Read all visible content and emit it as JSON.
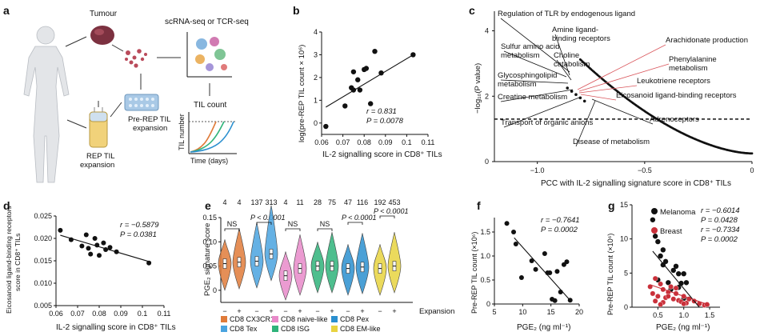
{
  "panel_letters": {
    "a": "a",
    "b": "b",
    "c": "c",
    "d": "d",
    "e": "e",
    "f": "f",
    "g": "g"
  },
  "schematic": {
    "tumour": "Tumour",
    "seq": "scRNA-seq or TCR-seq",
    "pre_rep_1": "Pre-REP TIL",
    "pre_rep_2": "expansion",
    "rep_1": "REP TIL",
    "rep_2": "expansion",
    "til_count": "TIL count",
    "til_number": "TIL number",
    "time_days": "Time (days)"
  },
  "colors": {
    "black": "#111111",
    "red_lines": "#d9555b",
    "breast": "#c9303a"
  },
  "chart_data": [
    {
      "id": "b",
      "type": "scatter",
      "xlabel": "IL-2 signalling score in CD8⁺ TILs",
      "ylabel": "log(pre-REP TIL count × 10⁶)",
      "xlim": [
        0.06,
        0.11
      ],
      "ylim": [
        -0.5,
        4
      ],
      "xticks": [
        "0.06",
        "0.07",
        "0.08",
        "0.09",
        "0.1",
        "0.11"
      ],
      "yticks": [
        "0",
        "1",
        "2",
        "3",
        "4"
      ],
      "x": [
        0.062,
        0.071,
        0.074,
        0.075,
        0.075,
        0.077,
        0.078,
        0.08,
        0.081,
        0.083,
        0.085,
        0.088,
        0.103
      ],
      "y": [
        -0.15,
        0.75,
        1.55,
        1.45,
        2.25,
        1.9,
        1.45,
        2.35,
        2.4,
        0.85,
        3.15,
        2.2,
        3.0
      ],
      "fit": [
        [
          0.062,
          0.7
        ],
        [
          0.104,
          3.05
        ]
      ],
      "stats": [
        "r = 0.831",
        "P = 0.0078"
      ]
    },
    {
      "id": "c",
      "type": "scatter",
      "xlabel": "PCC with IL-2 signalling signature score in CD8⁺ TILs",
      "ylabel": "−log₁₀(P value)",
      "xlim": [
        -1.2,
        0
      ],
      "ylim": [
        0,
        4.6
      ],
      "xticks": [
        "−1.0",
        "−0.5",
        "0"
      ],
      "yticks": [
        "0",
        "2",
        "4"
      ],
      "threshold": 1.3,
      "annotations": [
        "Regulation of TLR by endogenous ligand",
        "Amine ligand-",
        "binding receptors",
        "Sulfur amino acid",
        "metabolism",
        "Choline",
        "catabolism",
        "Glycosphingolipid",
        "metabolism",
        "Creatine metabolism",
        "Transport of organic anions",
        "Disease of metabolism",
        "Arachidonate production",
        "Phenylalanine",
        "metabolism",
        "Leukotriene receptors",
        "Eicosanoid ligand-binding receptors",
        "Adrenoceptors"
      ]
    },
    {
      "id": "d",
      "type": "scatter",
      "xlabel": "IL-2 signalling score in CD8⁺ TILs",
      "ylabel_1": "Eicosanoid ligand-binding receptors",
      "ylabel_2": "score in CD8⁺ TILs",
      "xlim": [
        0.06,
        0.11
      ],
      "ylim": [
        0.005,
        0.025
      ],
      "xticks": [
        "0.06",
        "0.07",
        "0.08",
        "0.09",
        "0.1",
        "0.11"
      ],
      "yticks": [
        "0.005",
        "0.010",
        "0.015",
        "0.020",
        "0.025"
      ],
      "x": [
        0.062,
        0.067,
        0.072,
        0.074,
        0.075,
        0.076,
        0.078,
        0.079,
        0.08,
        0.082,
        0.083,
        0.085,
        0.088,
        0.103
      ],
      "y": [
        0.0218,
        0.0197,
        0.0183,
        0.0208,
        0.0178,
        0.0165,
        0.02,
        0.0185,
        0.0162,
        0.019,
        0.0175,
        0.018,
        0.017,
        0.0145
      ],
      "fit": [
        [
          0.062,
          0.0207
        ],
        [
          0.104,
          0.0147
        ]
      ],
      "stats": [
        "r = −0.5879",
        "P = 0.0381"
      ]
    },
    {
      "id": "e",
      "type": "violin",
      "ylabel": "PGE₂ signature score",
      "ylim": [
        -0.025,
        0.15
      ],
      "yticks": [
        "0",
        "0.05",
        "0.10",
        "0.15"
      ],
      "counts": [
        "4",
        "4",
        "137",
        "313",
        "4",
        "11",
        "28",
        "75",
        "47",
        "116",
        "192",
        "453"
      ],
      "groups": [
        {
          "name": "CD8 CX3CR1",
          "color": "#e07b39",
          "n": [
            "4",
            "4"
          ]
        },
        {
          "name": "CD8 naive-like",
          "color": "#e889c9",
          "n": [
            "4",
            "11"
          ]
        },
        {
          "name": "CD8 Pex",
          "color": "#2a8fcf",
          "n": [
            "47",
            "116"
          ]
        },
        {
          "name": "CD8 Tex",
          "color": "#4aa3df",
          "n": [
            "137",
            "313"
          ]
        },
        {
          "name": "CD8 ISG",
          "color": "#2fb37a",
          "n": [
            "28",
            "75"
          ]
        },
        {
          "name": "CD8 EM-like",
          "color": "#e8d340",
          "n": [
            "192",
            "453"
          ]
        }
      ],
      "order": [
        "CD8 CX3CR1",
        "CD8 Tex",
        "CD8 naive-like",
        "CD8 ISG",
        "CD8 Pex",
        "CD8 EM-like"
      ],
      "medians": [
        [
          0.055,
          0.058
        ],
        [
          0.06,
          0.075
        ],
        [
          0.03,
          0.045
        ],
        [
          0.05,
          0.05
        ],
        [
          0.045,
          0.048
        ],
        [
          0.045,
          0.05
        ]
      ],
      "sig": [
        "NS",
        "P < 0.0001",
        "NS",
        "NS",
        "P < 0.0001",
        "P < 0.0001"
      ],
      "xtick_minus": "−",
      "xtick_plus": "+",
      "expansion": "Expansion"
    },
    {
      "id": "f",
      "type": "scatter",
      "xlabel": "PGE₂ (ng ml⁻¹)",
      "ylabel": "Pre-REP TIL count (×10⁶)",
      "xlim": [
        5,
        20
      ],
      "ylim": [
        0,
        1.8
      ],
      "xticks": [
        "5",
        "10",
        "15",
        "20"
      ],
      "yticks": [
        "0",
        "0.5",
        "1.0",
        "1.5"
      ],
      "x": [
        7.2,
        8.4,
        8.8,
        9.8,
        11.6,
        12.3,
        13.9,
        14.4,
        14.8,
        15.2,
        15.7,
        16.1,
        16.7,
        17.3,
        17.8,
        18.4
      ],
      "y": [
        1.68,
        1.5,
        1.25,
        0.55,
        0.9,
        0.72,
        1.05,
        0.65,
        0.65,
        0.1,
        0.07,
        0.68,
        0.25,
        0.82,
        0.88,
        0.08
      ],
      "fit": [
        [
          8.5,
          1.38
        ],
        [
          18.6,
          0.05
        ]
      ],
      "stats": [
        "r = −0.7641",
        "P = 0.0002"
      ]
    },
    {
      "id": "g",
      "type": "scatter",
      "xlabel": "PGE₂ (ng ml⁻¹)",
      "ylabel": "Pre-REP TIL count (×10⁶)",
      "xlim": [
        0,
        1.7
      ],
      "ylim": [
        0,
        15
      ],
      "xticks": [
        "0.5",
        "1.0",
        "1.5"
      ],
      "yticks": [
        "0",
        "5",
        "10",
        "15"
      ],
      "series": [
        {
          "name": "Melanoma",
          "color": "#111111",
          "x": [
            0.4,
            0.45,
            0.5,
            0.55,
            0.6,
            0.65,
            0.7,
            0.8,
            0.85,
            0.9,
            0.95,
            1.0,
            1.05,
            1.1,
            0.5,
            0.6,
            0.75,
            0.9,
            1.0
          ],
          "y": [
            12.8,
            10.4,
            9.6,
            7.5,
            8.4,
            6.7,
            3.6,
            5.4,
            6.0,
            4.9,
            3.5,
            4.9,
            3.6,
            1.2,
            4.0,
            6.2,
            2.6,
            2.9,
            1.3
          ]
        },
        {
          "name": "Breast",
          "color": "#c9303a",
          "x": [
            0.35,
            0.4,
            0.45,
            0.5,
            0.55,
            0.6,
            0.65,
            0.7,
            0.75,
            0.8,
            0.85,
            0.9,
            0.95,
            1.0,
            1.05,
            1.1,
            1.2,
            1.3,
            1.4,
            1.45,
            0.45,
            0.6,
            0.7,
            0.85,
            1.0,
            0.55
          ],
          "y": [
            3.0,
            2.0,
            4.2,
            1.6,
            3.4,
            2.6,
            1.4,
            2.2,
            3.0,
            1.2,
            2.0,
            1.0,
            0.8,
            1.6,
            0.6,
            1.2,
            0.9,
            0.5,
            0.3,
            0.4,
            0.9,
            0.7,
            1.6,
            2.8,
            0.5,
            0.4
          ]
        }
      ],
      "fits": [
        [
          [
            0.4,
            8.2
          ],
          [
            1.3,
            0.0
          ]
        ],
        [
          [
            0.35,
            3.3
          ],
          [
            1.5,
            0.3
          ]
        ]
      ],
      "stats_melanoma": [
        "r = −0.6014",
        "P = 0.0428"
      ],
      "stats_breast": [
        "r = −0.7334",
        "P = 0.0002"
      ]
    }
  ]
}
